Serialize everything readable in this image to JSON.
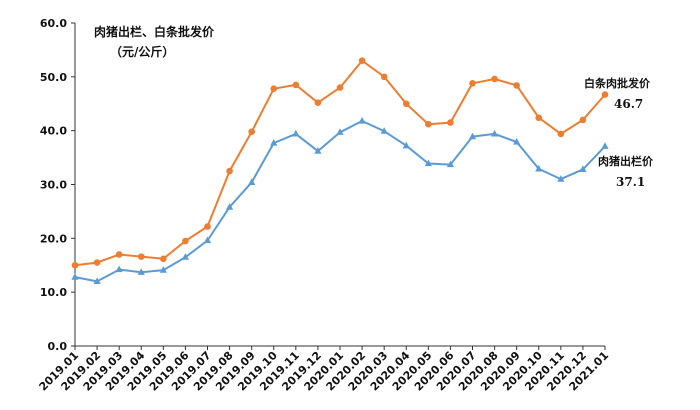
{
  "chart_data": {
    "type": "line",
    "title": "肉猪出栏、白条批发价",
    "unit": "（元/公斤）",
    "ylim": [
      0,
      60
    ],
    "yticks": [
      "0.0",
      "10.0",
      "20.0",
      "30.0",
      "40.0",
      "50.0",
      "60.0"
    ],
    "grid": false,
    "categories": [
      "2019.01",
      "2019.02",
      "2019.03",
      "2019.04",
      "2019.05",
      "2019.06",
      "2019.07",
      "2019.08",
      "2019.09",
      "2019.10",
      "2019.11",
      "2019.12",
      "2020.01",
      "2020.02",
      "2020.03",
      "2020.04",
      "2020.05",
      "2020.06",
      "2020.07",
      "2020.08",
      "2020.09",
      "2020.10",
      "2020.11",
      "2020.12",
      "2021.01"
    ],
    "series": [
      {
        "name": "白条肉批发价",
        "color": "#ED7D31",
        "marker": "circle",
        "end_label": "46.7",
        "values": [
          15.0,
          15.5,
          17.0,
          16.6,
          16.2,
          19.5,
          22.2,
          32.5,
          39.8,
          47.8,
          48.5,
          45.2,
          48.0,
          53.0,
          50.0,
          45.0,
          41.2,
          41.5,
          48.8,
          49.6,
          48.4,
          42.4,
          39.4,
          42.0,
          46.7
        ]
      },
      {
        "name": "肉猪出栏价",
        "color": "#5B9BD5",
        "marker": "triangle",
        "end_label": "37.1",
        "values": [
          12.8,
          12.0,
          14.2,
          13.7,
          14.1,
          16.5,
          19.6,
          25.8,
          30.4,
          37.7,
          39.4,
          36.2,
          39.7,
          41.8,
          39.9,
          37.2,
          33.9,
          33.7,
          38.9,
          39.4,
          37.9,
          32.9,
          31.0,
          32.8,
          37.1
        ]
      }
    ]
  }
}
